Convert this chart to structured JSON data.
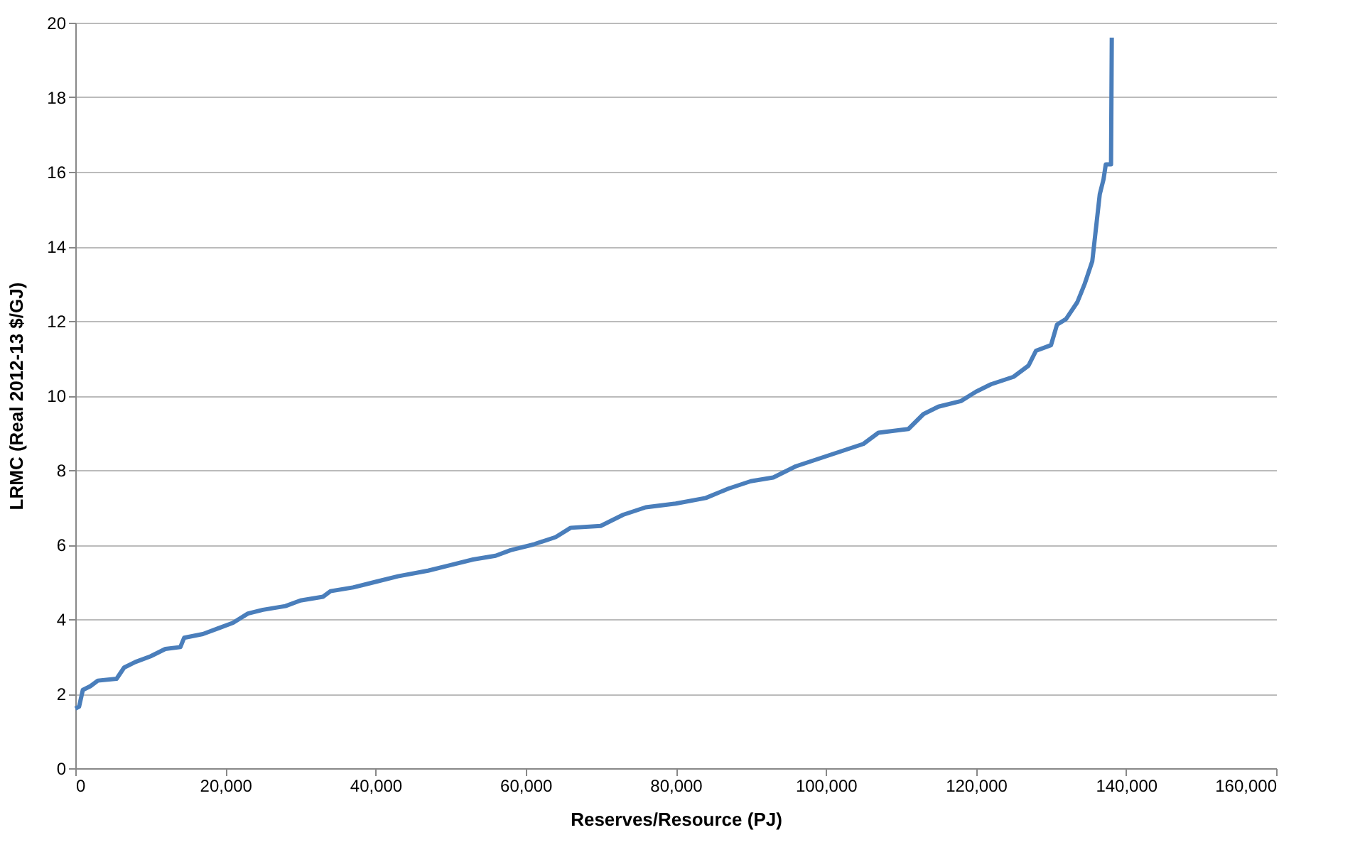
{
  "chart_data": {
    "type": "line",
    "xlabel": "Reserves/Resource (PJ)",
    "ylabel": "LRMC (Real 2012-13 $/GJ)",
    "x": [
      0,
      500,
      1000,
      2000,
      3000,
      5500,
      6500,
      8000,
      10000,
      12000,
      14000,
      14500,
      17000,
      19000,
      21000,
      23000,
      25000,
      28000,
      30000,
      33000,
      34000,
      37000,
      40000,
      43000,
      47000,
      50000,
      53000,
      56000,
      58000,
      61000,
      64000,
      66000,
      70000,
      73000,
      76000,
      80000,
      84000,
      87000,
      90000,
      93000,
      96000,
      99000,
      102000,
      105000,
      107000,
      111000,
      113000,
      115000,
      118000,
      120000,
      122000,
      125000,
      127000,
      128000,
      130000,
      130800,
      132000,
      133500,
      134500,
      135500,
      136000,
      136500,
      137000,
      137300,
      138000,
      138100
    ],
    "series": [
      {
        "color": "#4a7ebb",
        "values": [
          1.6,
          1.65,
          2.1,
          2.2,
          2.35,
          2.4,
          2.7,
          2.85,
          3.0,
          3.2,
          3.25,
          3.5,
          3.6,
          3.75,
          3.9,
          4.15,
          4.25,
          4.35,
          4.5,
          4.6,
          4.75,
          4.85,
          5.0,
          5.15,
          5.3,
          5.45,
          5.6,
          5.7,
          5.85,
          6.0,
          6.2,
          6.45,
          6.5,
          6.8,
          7.0,
          7.1,
          7.25,
          7.5,
          7.7,
          7.8,
          8.1,
          8.3,
          8.5,
          8.7,
          9.0,
          9.1,
          9.5,
          9.7,
          9.85,
          10.1,
          10.3,
          10.5,
          10.8,
          11.2,
          11.35,
          11.9,
          12.05,
          12.5,
          13.0,
          13.6,
          14.5,
          15.4,
          15.8,
          16.2,
          16.2,
          19.6
        ]
      }
    ],
    "xlim": [
      0,
      160000
    ],
    "xticks": [
      0,
      {
        "value": 20000,
        "label": "20,000"
      },
      {
        "value": 40000,
        "label": "40,000"
      },
      {
        "value": 60000,
        "label": "60,000"
      },
      {
        "value": 80000,
        "label": "80,000"
      },
      {
        "value": 100000,
        "label": "100,000"
      },
      {
        "value": 120000,
        "label": "120,000"
      },
      {
        "value": 140000,
        "label": "140,000"
      },
      {
        "value": 160000,
        "label": "160,000"
      }
    ],
    "ylim": [
      0,
      20
    ],
    "yticks": [
      0,
      2,
      4,
      6,
      8,
      10,
      12,
      14,
      16,
      18,
      20
    ],
    "grid": "y",
    "marker": "none",
    "line_style": "solid"
  }
}
